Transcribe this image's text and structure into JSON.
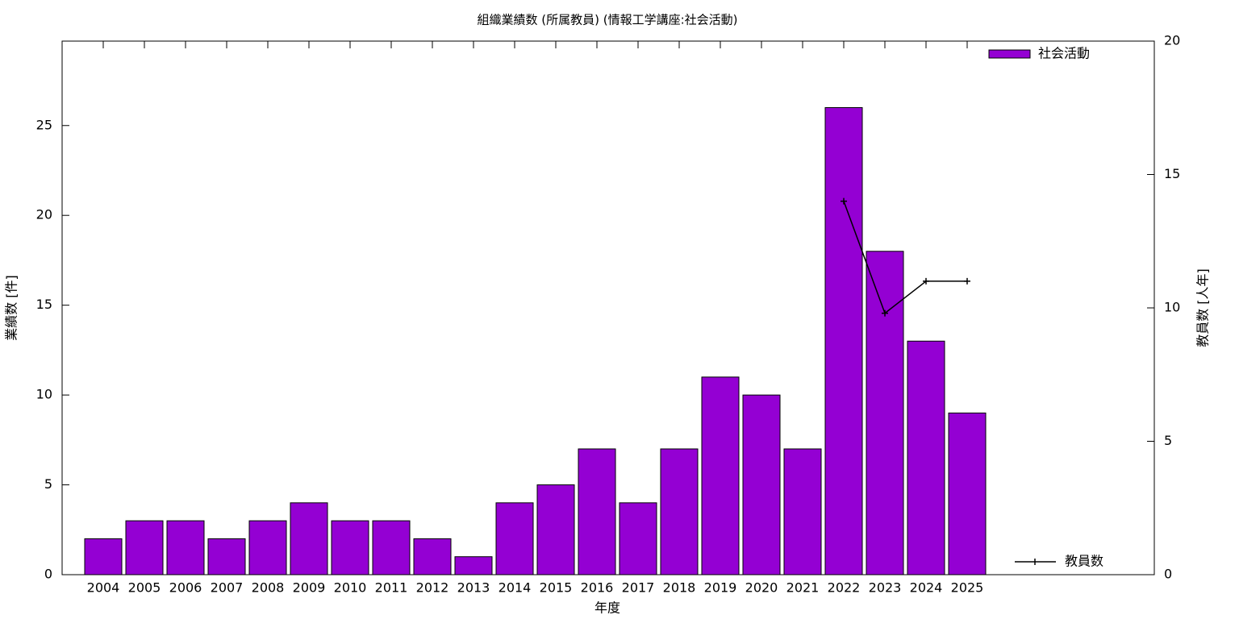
{
  "chart_data": {
    "type": "bar",
    "title": "組織業績数 (所属教員) (情報工学講座:社会活動)",
    "x_label": "年度",
    "y_label": "業績数 [件]",
    "y2_label": "教員数 [人年]",
    "categories": [
      "2004",
      "2005",
      "2006",
      "2007",
      "2008",
      "2009",
      "2010",
      "2011",
      "2012",
      "2013",
      "2014",
      "2015",
      "2016",
      "2017",
      "2018",
      "2019",
      "2020",
      "2021",
      "2022",
      "2023",
      "2024",
      "2025"
    ],
    "series": [
      {
        "name": "社会活動",
        "type": "bar",
        "color": "#9400d3",
        "values": [
          2,
          3,
          3,
          2,
          3,
          4,
          3,
          3,
          2,
          1,
          4,
          5,
          7,
          4,
          7,
          11,
          10,
          7,
          26,
          18,
          13,
          9
        ]
      },
      {
        "name": "教員数",
        "type": "line",
        "axis": "y2",
        "color": "#000000",
        "values": [
          null,
          null,
          null,
          null,
          null,
          null,
          null,
          null,
          null,
          null,
          null,
          null,
          null,
          null,
          null,
          null,
          null,
          null,
          14,
          9.8,
          11,
          11
        ]
      }
    ],
    "ylim": [
      0,
      29.7
    ],
    "yticks": [
      0,
      5,
      10,
      15,
      20,
      25
    ],
    "y2lim": [
      0,
      20
    ],
    "y2ticks": [
      0,
      5,
      10,
      15,
      20
    ]
  }
}
